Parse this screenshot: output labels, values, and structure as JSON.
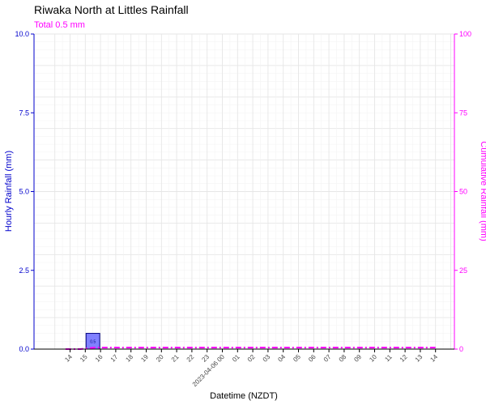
{
  "chart_data": {
    "type": "bar",
    "title": "Riwaka North at Littles Rainfall",
    "subtitle": "Total 0.5 mm",
    "xlabel": "Datetime (NZDT)",
    "ylabel_left": "Hourly Rainfall (mm)",
    "ylabel_right": "Cumulative Rainfall (mm)",
    "ylim_left": [
      0,
      10
    ],
    "ylim_right": [
      0,
      100
    ],
    "yticks_left": [
      "0.0",
      "2.5",
      "5.0",
      "7.5",
      "10.0"
    ],
    "yticks_right": [
      "0",
      "25",
      "50",
      "75",
      "100"
    ],
    "grid": true,
    "x_tick_labels": [
      "14",
      "15",
      "16",
      "17",
      "18",
      "19",
      "20",
      "21",
      "22",
      "23",
      "2023-04-06 00",
      "01",
      "02",
      "03",
      "04",
      "05",
      "06",
      "07",
      "08",
      "09",
      "10",
      "11",
      "12",
      "13",
      "14"
    ],
    "bars": [
      {
        "x_index": 1.5,
        "value": 0.5,
        "label": "0.5"
      }
    ],
    "cumulative": {
      "x_start_index": -0.3,
      "x_end_index": 24,
      "values": [
        0,
        0,
        0.5,
        0.5,
        0.5,
        0.5,
        0.5,
        0.5,
        0.5,
        0.5,
        0.5,
        0.5,
        0.5,
        0.5,
        0.5,
        0.5,
        0.5,
        0.5,
        0.5,
        0.5,
        0.5,
        0.5,
        0.5,
        0.5,
        0.5,
        0.5
      ]
    },
    "colors": {
      "left_axis": "#0000cc",
      "right_axis": "#ff00ff",
      "bar_fill": "#8080ff",
      "bar_stroke": "#000080",
      "bar_label": "#000080",
      "grid_major": "#e6e6e6",
      "grid_minor": "#f2f2f2"
    }
  }
}
